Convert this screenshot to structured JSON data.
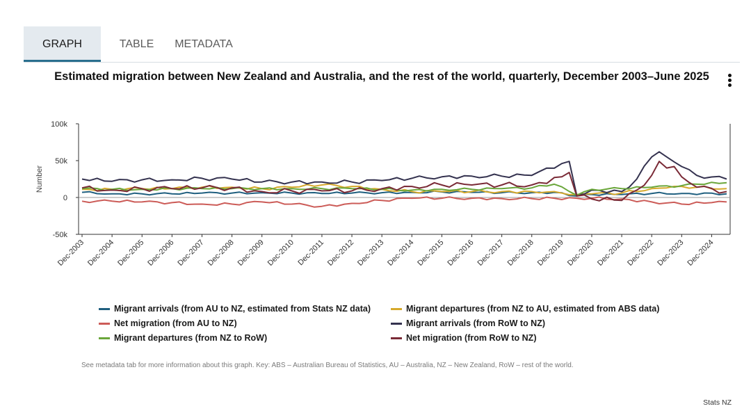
{
  "tabs": [
    {
      "label": "GRAPH",
      "active": true
    },
    {
      "label": "TABLE",
      "active": false
    },
    {
      "label": "METADATA",
      "active": false
    }
  ],
  "menu_icon": "vertical-ellipsis-icon",
  "footer": {
    "note": "See metadata tab for more information about this graph. Key: ABS – Australian Bureau of Statistics, AU – Australia, NZ – New Zealand, RoW – rest of the world.",
    "source": "Stats NZ"
  },
  "chart_data": {
    "type": "line",
    "title": "Estimated migration between New Zealand and Australia, and the rest of the world, quarterly, December 2003–June 2025",
    "ylabel": "Number",
    "ylim": [
      -50000,
      100000
    ],
    "yticks": [
      -50000,
      0,
      50000,
      100000
    ],
    "ytick_labels": [
      "-50k",
      "0",
      "50k",
      "100k"
    ],
    "grid": "zero line only",
    "legend_position": "bottom",
    "x_start": "Dec-2003",
    "x_end": "Jun-2025",
    "x_frequency": "quarterly",
    "x_tick_labels": [
      "Dec-2003",
      "Dec-2004",
      "Dec-2005",
      "Dec-2006",
      "Dec-2007",
      "Dec-2008",
      "Dec-2009",
      "Dec-2010",
      "Dec-2011",
      "Dec-2012",
      "Dec-2013",
      "Dec-2014",
      "Dec-2015",
      "Dec-2016",
      "Dec-2017",
      "Dec-2018",
      "Dec-2019",
      "Dec-2020",
      "Dec-2021",
      "Dec-2022",
      "Dec-2023",
      "Dec-2024"
    ],
    "series": [
      {
        "name": "Migrant arrivals (from AU to NZ, estimated from Stats NZ data)",
        "color": "#1f5f7f",
        "anchors": [
          [
            "Dec-2003",
            7000
          ],
          [
            "Dec-2004",
            5000
          ],
          [
            "Dec-2005",
            5000
          ],
          [
            "Dec-2006",
            5000
          ],
          [
            "Dec-2007",
            6000
          ],
          [
            "Dec-2008",
            6000
          ],
          [
            "Dec-2009",
            6500
          ],
          [
            "Dec-2010",
            6000
          ],
          [
            "Dec-2011",
            5500
          ],
          [
            "Dec-2012",
            6000
          ],
          [
            "Dec-2013",
            6500
          ],
          [
            "Dec-2014",
            7000
          ],
          [
            "Dec-2015",
            7500
          ],
          [
            "Dec-2016",
            7000
          ],
          [
            "Dec-2017",
            6500
          ],
          [
            "Dec-2018",
            6500
          ],
          [
            "Sep-2019",
            7000
          ],
          [
            "Jun-2020",
            2000
          ],
          [
            "Dec-2020",
            4000
          ],
          [
            "Dec-2021",
            4000
          ],
          [
            "Dec-2022",
            5500
          ],
          [
            "Dec-2023",
            5500
          ],
          [
            "Jun-2025",
            5000
          ]
        ]
      },
      {
        "name": "Migrant departures (from NZ to AU, estimated from ABS data)",
        "color": "#d6a92c",
        "anchors": [
          [
            "Dec-2003",
            11000
          ],
          [
            "Dec-2004",
            11000
          ],
          [
            "Dec-2005",
            12000
          ],
          [
            "Dec-2006",
            12000
          ],
          [
            "Dec-2007",
            14000
          ],
          [
            "Dec-2008",
            14000
          ],
          [
            "Dec-2009",
            12000
          ],
          [
            "Dec-2010",
            14000
          ],
          [
            "Dec-2011",
            17000
          ],
          [
            "Dec-2012",
            15000
          ],
          [
            "Dec-2013",
            11000
          ],
          [
            "Dec-2014",
            8000
          ],
          [
            "Dec-2015",
            8000
          ],
          [
            "Dec-2016",
            8000
          ],
          [
            "Dec-2017",
            8000
          ],
          [
            "Dec-2018",
            8000
          ],
          [
            "Sep-2019",
            8000
          ],
          [
            "Jun-2020",
            4000
          ],
          [
            "Dec-2020",
            5000
          ],
          [
            "Dec-2021",
            6000
          ],
          [
            "Dec-2022",
            12000
          ],
          [
            "Jun-2023",
            13000
          ],
          [
            "Dec-2023",
            15000
          ],
          [
            "Jun-2024",
            14000
          ],
          [
            "Jun-2025",
            12000
          ]
        ]
      },
      {
        "name": "Net migration (from AU to NZ)",
        "color": "#cc5c58",
        "anchors": [
          [
            "Dec-2003",
            -5000
          ],
          [
            "Dec-2004",
            -5000
          ],
          [
            "Dec-2005",
            -6000
          ],
          [
            "Dec-2006",
            -7000
          ],
          [
            "Dec-2007",
            -9000
          ],
          [
            "Dec-2008",
            -9000
          ],
          [
            "Dec-2009",
            -6000
          ],
          [
            "Dec-2010",
            -9000
          ],
          [
            "Dec-2011",
            -12000
          ],
          [
            "Dec-2012",
            -8000
          ],
          [
            "Dec-2013",
            -4000
          ],
          [
            "Dec-2014",
            -1000
          ],
          [
            "Dec-2015",
            -1000
          ],
          [
            "Dec-2016",
            -1000
          ],
          [
            "Dec-2017",
            -1500
          ],
          [
            "Dec-2018",
            -1500
          ],
          [
            "Sep-2019",
            -1000
          ],
          [
            "Jun-2020",
            -1000
          ],
          [
            "Dec-2020",
            -1000
          ],
          [
            "Dec-2021",
            -2000
          ],
          [
            "Dec-2022",
            -6000
          ],
          [
            "Dec-2023",
            -9000
          ],
          [
            "Dec-2024",
            -7000
          ],
          [
            "Jun-2025",
            -6000
          ]
        ]
      },
      {
        "name": "Migrant arrivals (from RoW to NZ)",
        "color": "#34324f",
        "anchors": [
          [
            "Dec-2003",
            25000
          ],
          [
            "Dec-2004",
            22000
          ],
          [
            "Dec-2005",
            24000
          ],
          [
            "Dec-2006",
            24000
          ],
          [
            "Dec-2007",
            26000
          ],
          [
            "Dec-2008",
            25000
          ],
          [
            "Dec-2009",
            21000
          ],
          [
            "Dec-2010",
            21000
          ],
          [
            "Dec-2011",
            21000
          ],
          [
            "Dec-2012",
            21000
          ],
          [
            "Dec-2013",
            23000
          ],
          [
            "Dec-2014",
            26000
          ],
          [
            "Dec-2015",
            28000
          ],
          [
            "Dec-2016",
            29000
          ],
          [
            "Dec-2017",
            29000
          ],
          [
            "Dec-2018",
            30000
          ],
          [
            "Dec-2019",
            46000
          ],
          [
            "Mar-2020",
            49000
          ],
          [
            "Jun-2020",
            3000
          ],
          [
            "Dec-2020",
            10000
          ],
          [
            "Dec-2021",
            8000
          ],
          [
            "Jun-2022",
            25000
          ],
          [
            "Dec-2022",
            55000
          ],
          [
            "Mar-2023",
            62000
          ],
          [
            "Jun-2023",
            55000
          ],
          [
            "Dec-2023",
            42000
          ],
          [
            "Jun-2024",
            30000
          ],
          [
            "Jun-2025",
            25000
          ]
        ]
      },
      {
        "name": "Migrant departures (from NZ to RoW)",
        "color": "#6aa63a",
        "anchors": [
          [
            "Dec-2003",
            12000
          ],
          [
            "Dec-2004",
            11000
          ],
          [
            "Dec-2005",
            11000
          ],
          [
            "Dec-2006",
            12000
          ],
          [
            "Dec-2007",
            12000
          ],
          [
            "Dec-2008",
            12000
          ],
          [
            "Dec-2009",
            12000
          ],
          [
            "Dec-2010",
            12000
          ],
          [
            "Dec-2011",
            12000
          ],
          [
            "Dec-2012",
            12000
          ],
          [
            "Dec-2013",
            11000
          ],
          [
            "Dec-2014",
            10000
          ],
          [
            "Dec-2015",
            11000
          ],
          [
            "Dec-2016",
            11000
          ],
          [
            "Dec-2017",
            12000
          ],
          [
            "Dec-2018",
            13000
          ],
          [
            "Sep-2019",
            18000
          ],
          [
            "Jun-2020",
            3000
          ],
          [
            "Dec-2020",
            11000
          ],
          [
            "Dec-2021",
            12000
          ],
          [
            "Dec-2022",
            14000
          ],
          [
            "Dec-2023",
            16000
          ],
          [
            "Jun-2024",
            18000
          ],
          [
            "Jun-2025",
            20000
          ]
        ]
      },
      {
        "name": "Net migration (from RoW to NZ)",
        "color": "#7a2a36",
        "anchors": [
          [
            "Dec-2003",
            13000
          ],
          [
            "Dec-2004",
            10000
          ],
          [
            "Dec-2005",
            12000
          ],
          [
            "Dec-2006",
            12000
          ],
          [
            "Dec-2007",
            13000
          ],
          [
            "Dec-2008",
            13000
          ],
          [
            "Dec-2009",
            8000
          ],
          [
            "Dec-2010",
            9000
          ],
          [
            "Dec-2011",
            9000
          ],
          [
            "Dec-2012",
            9000
          ],
          [
            "Dec-2013",
            12000
          ],
          [
            "Dec-2014",
            15000
          ],
          [
            "Dec-2015",
            17000
          ],
          [
            "Dec-2016",
            17000
          ],
          [
            "Dec-2017",
            17000
          ],
          [
            "Dec-2018",
            17000
          ],
          [
            "Dec-2019",
            28000
          ],
          [
            "Mar-2020",
            34000
          ],
          [
            "Jun-2020",
            2000
          ],
          [
            "Dec-2020",
            -2000
          ],
          [
            "Dec-2021",
            -4000
          ],
          [
            "Jun-2022",
            10000
          ],
          [
            "Dec-2022",
            30000
          ],
          [
            "Mar-2023",
            49000
          ],
          [
            "Jun-2023",
            40000
          ],
          [
            "Sep-2023",
            42000
          ],
          [
            "Dec-2023",
            28000
          ],
          [
            "Jun-2024",
            14000
          ],
          [
            "Jun-2025",
            8000
          ]
        ]
      }
    ]
  }
}
